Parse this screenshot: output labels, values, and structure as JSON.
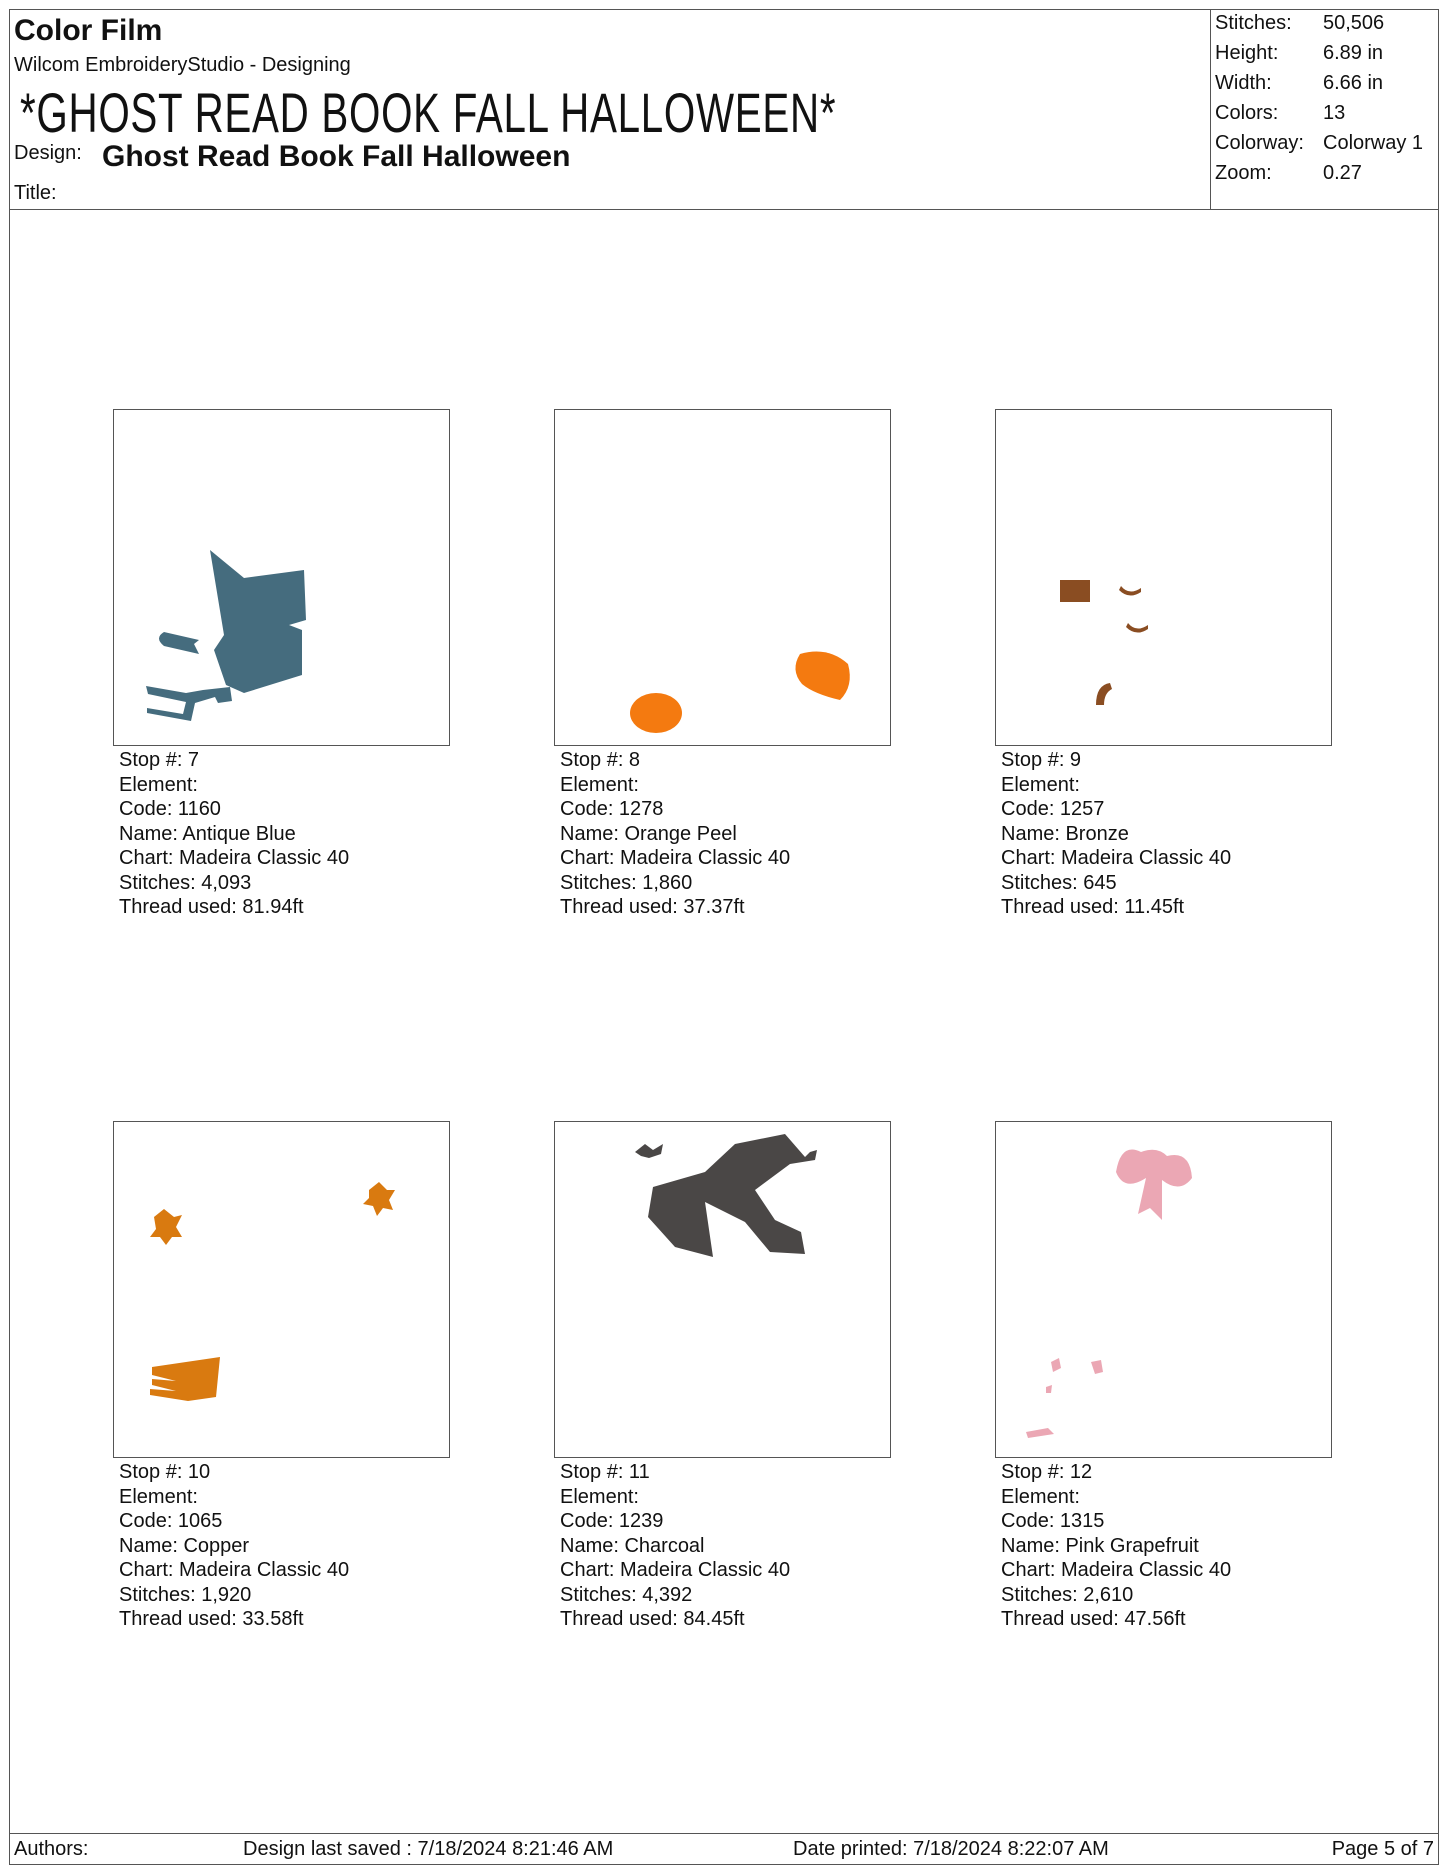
{
  "header": {
    "report_title": "Color Film",
    "app": "Wilcom EmbroideryStudio - Designing",
    "big_title": "*GHOST READ BOOK FALL HALLOWEEN*",
    "design_label": "Design:",
    "design_name": "Ghost Read Book Fall Halloween",
    "title_label": "Title:"
  },
  "stats": [
    {
      "label": "Stitches:",
      "value": "50,506"
    },
    {
      "label": "Height:",
      "value": "6.89 in"
    },
    {
      "label": "Width:",
      "value": "6.66 in"
    },
    {
      "label": "Colors:",
      "value": "13"
    },
    {
      "label": "Colorway:",
      "value": "Colorway 1"
    },
    {
      "label": "Zoom:",
      "value": "0.27"
    }
  ],
  "stops": [
    {
      "stop": "Stop #: 7",
      "element": "Element:",
      "code": "Code: 1160",
      "name": "Name: Antique Blue",
      "chart": "Chart: Madeira Classic 40",
      "stitches": "Stitches: 4,093",
      "thread": "Thread used: 81.94ft",
      "color": "#456c7e"
    },
    {
      "stop": "Stop #: 8",
      "element": "Element:",
      "code": "Code: 1278",
      "name": "Name: Orange Peel",
      "chart": "Chart: Madeira Classic 40",
      "stitches": "Stitches: 1,860",
      "thread": "Thread used: 37.37ft",
      "color": "#f47a10"
    },
    {
      "stop": "Stop #: 9",
      "element": "Element:",
      "code": "Code: 1257",
      "name": "Name: Bronze",
      "chart": "Chart: Madeira Classic 40",
      "stitches": "Stitches: 645",
      "thread": "Thread used: 11.45ft",
      "color": "#8a4d22"
    },
    {
      "stop": "Stop #: 10",
      "element": "Element:",
      "code": "Code: 1065",
      "name": "Name: Copper",
      "chart": "Chart: Madeira Classic 40",
      "stitches": "Stitches: 1,920",
      "thread": "Thread used: 33.58ft",
      "color": "#d97a10"
    },
    {
      "stop": "Stop #: 11",
      "element": "Element:",
      "code": "Code: 1239",
      "name": "Name: Charcoal",
      "chart": "Chart: Madeira Classic 40",
      "stitches": "Stitches: 4,392",
      "thread": "Thread used: 84.45ft",
      "color": "#4a4746"
    },
    {
      "stop": "Stop #: 12",
      "element": "Element:",
      "code": "Code: 1315",
      "name": "Name: Pink Grapefruit",
      "chart": "Chart: Madeira Classic 40",
      "stitches": "Stitches: 2,610",
      "thread": "Thread used: 47.56ft",
      "color": "#eba7b4"
    }
  ],
  "footer": {
    "authors": "Authors:",
    "saved": "Design last saved : 7/18/2024 8:21:46 AM",
    "printed": "Date printed: 7/18/2024 8:22:07 AM",
    "page": "Page 5 of 7"
  }
}
